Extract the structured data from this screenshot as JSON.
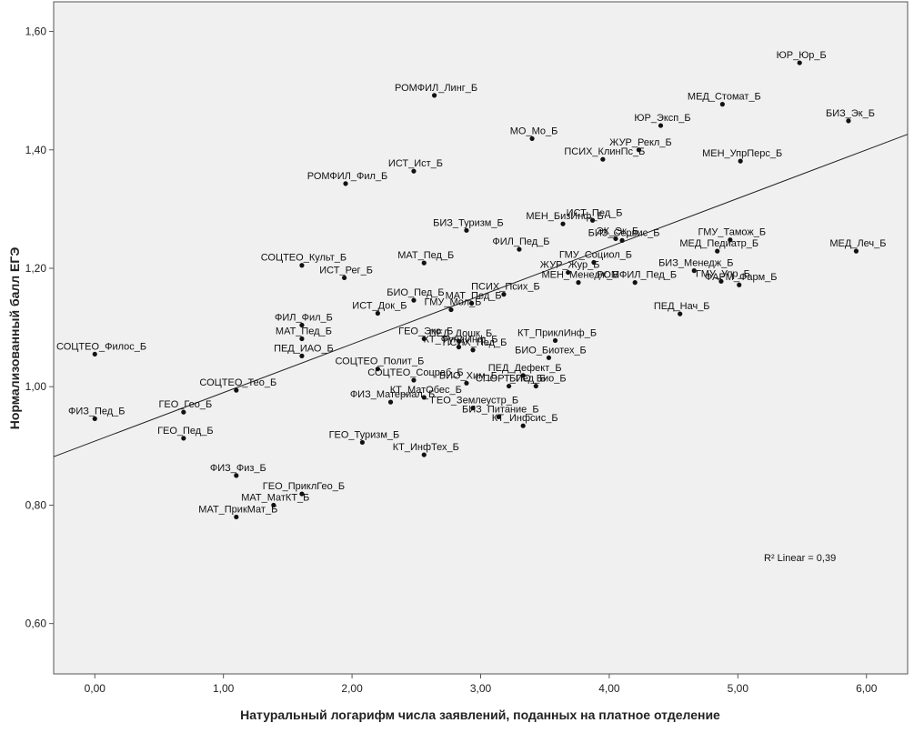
{
  "chart_data": {
    "type": "scatter",
    "title": "",
    "xlabel": "Натуральный логарифм числа заявлений, поданных на платное отделение",
    "ylabel": "Нормализованный балл ЕГЭ",
    "xlim": [
      -0.32,
      6.32
    ],
    "ylim": [
      0.515,
      1.65
    ],
    "x_ticks": [
      "0,00",
      "1,00",
      "2,00",
      "3,00",
      "4,00",
      "5,00",
      "6,00"
    ],
    "y_ticks": [
      "0,60",
      "0,80",
      "1,00",
      "1,20",
      "1,40",
      "1,60"
    ],
    "grid": false,
    "regression": {
      "label": "R² Linear = 0,39",
      "intercept": 0.908,
      "slope": 0.082
    },
    "points": [
      {
        "label": "ЮР_Юр_Б",
        "x": 5.48,
        "y": 1.547
      },
      {
        "label": "МЕД_Стомат_Б",
        "x": 4.88,
        "y": 1.477
      },
      {
        "label": "БИЗ_Эк_Б",
        "x": 5.86,
        "y": 1.449
      },
      {
        "label": "ЮР_Эксп_Б",
        "x": 4.4,
        "y": 1.441
      },
      {
        "label": "РОМФИЛ_Линг_Б",
        "x": 2.64,
        "y": 1.492
      },
      {
        "label": "МО_Мо_Б",
        "x": 3.4,
        "y": 1.419
      },
      {
        "label": "ЖУР_Рекл_Б",
        "x": 4.23,
        "y": 1.4
      },
      {
        "label": "МЕН_УпрПерс_Б",
        "x": 5.02,
        "y": 1.381
      },
      {
        "label": "ПСИХ_КлинПс_Б",
        "x": 3.95,
        "y": 1.384
      },
      {
        "label": "ИСТ_Ист_Б",
        "x": 2.48,
        "y": 1.364
      },
      {
        "label": "РОМФИЛ_Фил_Б",
        "x": 1.95,
        "y": 1.343
      },
      {
        "label": "МЕН_БизИнф_Б",
        "x": 3.64,
        "y": 1.275
      },
      {
        "label": "ИСТ_Пед_Б",
        "x": 3.87,
        "y": 1.281
      },
      {
        "label": "БИЗ_Туризм_Б",
        "x": 2.89,
        "y": 1.264
      },
      {
        "label": "ФИЛ_Пед_Б",
        "x": 3.3,
        "y": 1.232
      },
      {
        "label": "ЭК_Эк_Б",
        "x": 4.05,
        "y": 1.25
      },
      {
        "label": "БИЗ_Сервис_Б",
        "x": 4.1,
        "y": 1.247
      },
      {
        "label": "ГМУ_Тамож_Б",
        "x": 4.94,
        "y": 1.248
      },
      {
        "label": "МЕД_Леч_Б",
        "x": 5.92,
        "y": 1.229
      },
      {
        "label": "МАТ_Пед_Б",
        "x": 2.56,
        "y": 1.209
      },
      {
        "label": "СОЦТЕО_Культ_Б",
        "x": 1.61,
        "y": 1.205
      },
      {
        "label": "ГМУ_Социол_Б",
        "x": 3.88,
        "y": 1.21
      },
      {
        "label": "МЕД_Педиатр_Б",
        "x": 4.84,
        "y": 1.229
      },
      {
        "label": "ЖУР_Жур_Б",
        "x": 3.68,
        "y": 1.193
      },
      {
        "label": "ИСТ_Рег_Б",
        "x": 1.94,
        "y": 1.184
      },
      {
        "label": "РОМФИЛ_Пед_Б",
        "x": 4.2,
        "y": 1.176
      },
      {
        "label": "БИЗ_Менедж_Б",
        "x": 4.66,
        "y": 1.196
      },
      {
        "label": "ПСИХ_Псих_Б",
        "x": 3.18,
        "y": 1.156
      },
      {
        "label": "БИО_Пед_Б",
        "x": 2.48,
        "y": 1.146
      },
      {
        "label": "ГМУ_Упр_Б",
        "x": 4.87,
        "y": 1.178
      },
      {
        "label": "ФАРМ_Фарм_Б",
        "x": 5.01,
        "y": 1.172
      },
      {
        "label": "МЕН_Менедж_Б",
        "x": 3.76,
        "y": 1.176
      },
      {
        "label": "ИСТ_Док_Б",
        "x": 2.2,
        "y": 1.124
      },
      {
        "label": "ПЕД_Нач_Б",
        "x": 4.55,
        "y": 1.123
      },
      {
        "label": "МАТ_Пед_Б",
        "x": 2.93,
        "y": 1.141
      },
      {
        "label": "ФИЛ_Фил_Б",
        "x": 1.61,
        "y": 1.104
      },
      {
        "label": "ГМУ_Мол_Б",
        "x": 2.77,
        "y": 1.13
      },
      {
        "label": "ГЕО_Эко_Б",
        "x": 2.56,
        "y": 1.081
      },
      {
        "label": "МАТ_Пед_Б",
        "x": 1.61,
        "y": 1.081
      },
      {
        "label": "ПЕД_Дошк_Б",
        "x": 2.83,
        "y": 1.077
      },
      {
        "label": "КТ_ПриклИнф_Б",
        "x": 3.58,
        "y": 1.078
      },
      {
        "label": "СОЦТЕО_Филос_Б",
        "x": 0.0,
        "y": 1.055
      },
      {
        "label": "КТ_ФундИнф_Б",
        "x": 2.83,
        "y": 1.067
      },
      {
        "label": "ПСИХ_Пед_Б",
        "x": 2.94,
        "y": 1.062
      },
      {
        "label": "БИО_Биотех_Б",
        "x": 3.53,
        "y": 1.049
      },
      {
        "label": "ПЕД_ИАО_Б",
        "x": 1.61,
        "y": 1.052
      },
      {
        "label": "СОЦТЕО_Полит_Б",
        "x": 2.2,
        "y": 1.03
      },
      {
        "label": "ПЕД_Дефект_Б",
        "x": 3.33,
        "y": 1.019
      },
      {
        "label": "БИО_Хим_Б",
        "x": 2.89,
        "y": 1.006
      },
      {
        "label": "СОЦТЕО_Тео_Б",
        "x": 1.1,
        "y": 0.994
      },
      {
        "label": "СОЦТЕО_Соцраб_Б",
        "x": 2.48,
        "y": 1.011
      },
      {
        "label": "СПОРТ_Пед_Б",
        "x": 3.22,
        "y": 1.001
      },
      {
        "label": "БИО_Био_Б",
        "x": 3.43,
        "y": 1.001
      },
      {
        "label": "КТ_МатОбес_Б",
        "x": 2.56,
        "y": 0.982
      },
      {
        "label": "ГЕО_Гео_Б",
        "x": 0.69,
        "y": 0.957
      },
      {
        "label": "ФИЗ_Материал_Б",
        "x": 2.3,
        "y": 0.974
      },
      {
        "label": "ФИЗ_Пед_Б",
        "x": 0.0,
        "y": 0.946
      },
      {
        "label": "ГЕО_Землеустр_Б",
        "x": 2.94,
        "y": 0.964
      },
      {
        "label": "БИЗ_Питание_Б",
        "x": 3.14,
        "y": 0.949
      },
      {
        "label": "КТ_Инфсис_Б",
        "x": 3.33,
        "y": 0.934
      },
      {
        "label": "ГЕО_Пед_Б",
        "x": 0.69,
        "y": 0.913
      },
      {
        "label": "ГЕО_Туризм_Б",
        "x": 2.08,
        "y": 0.906
      },
      {
        "label": "КТ_ИнфТех_Б",
        "x": 2.56,
        "y": 0.885
      },
      {
        "label": "ФИЗ_Физ_Б",
        "x": 1.1,
        "y": 0.85
      },
      {
        "label": "ГЕО_ПриклГео_Б",
        "x": 1.61,
        "y": 0.819
      },
      {
        "label": "МАТ_МатКТ_Б",
        "x": 1.39,
        "y": 0.8
      },
      {
        "label": "МАТ_ПрикМат_Б",
        "x": 1.1,
        "y": 0.78
      }
    ]
  }
}
